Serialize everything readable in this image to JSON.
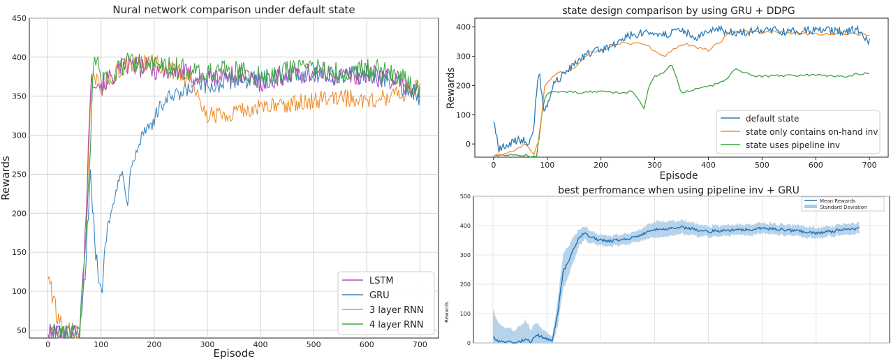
{
  "chart_data": [
    {
      "type": "line",
      "title": "Nural network comparison under default state",
      "xlabel": "Episode",
      "ylabel": "Rewards",
      "xlim": [
        -35,
        735
      ],
      "ylim": [
        40,
        450
      ],
      "x_ticks": [
        0,
        100,
        200,
        300,
        400,
        500,
        600,
        700
      ],
      "y_ticks": [
        50,
        100,
        150,
        200,
        250,
        300,
        350,
        400,
        450
      ],
      "grid": true,
      "legend_position": "bottom-right",
      "series": [
        {
          "name": "LSTM",
          "color": "#b64ab6",
          "x": [
            0,
            20,
            40,
            60,
            70,
            80,
            85,
            90,
            100,
            120,
            150,
            200,
            250,
            300,
            350,
            400,
            450,
            500,
            550,
            600,
            650,
            700
          ],
          "values": [
            45,
            45,
            45,
            45,
            170,
            360,
            375,
            372,
            365,
            375,
            390,
            385,
            380,
            372,
            378,
            368,
            378,
            380,
            375,
            378,
            372,
            355
          ]
        },
        {
          "name": "GRU",
          "color": "#3b86c0",
          "x": [
            0,
            20,
            40,
            60,
            70,
            80,
            85,
            90,
            95,
            100,
            105,
            110,
            120,
            140,
            150,
            160,
            180,
            200,
            220,
            250,
            280,
            300,
            350,
            400,
            450,
            500,
            550,
            600,
            650,
            700
          ],
          "values": [
            50,
            48,
            45,
            45,
            120,
            260,
            200,
            150,
            115,
            95,
            130,
            175,
            215,
            250,
            220,
            275,
            305,
            320,
            345,
            350,
            365,
            360,
            372,
            370,
            378,
            380,
            375,
            378,
            372,
            345
          ]
        },
        {
          "name": "3 layer RNN",
          "color": "#f0902e",
          "x": [
            0,
            20,
            40,
            60,
            70,
            80,
            85,
            90,
            100,
            120,
            150,
            200,
            250,
            280,
            300,
            320,
            350,
            400,
            450,
            500,
            550,
            600,
            650,
            700
          ],
          "values": [
            120,
            60,
            48,
            45,
            150,
            340,
            370,
            375,
            360,
            375,
            390,
            392,
            380,
            360,
            325,
            328,
            330,
            335,
            340,
            345,
            348,
            345,
            350,
            360
          ]
        },
        {
          "name": "4 layer RNN",
          "color": "#41a643",
          "x": [
            0,
            20,
            40,
            60,
            70,
            80,
            85,
            90,
            100,
            120,
            150,
            200,
            250,
            300,
            350,
            400,
            450,
            500,
            550,
            600,
            650,
            700
          ],
          "values": [
            45,
            45,
            45,
            45,
            160,
            280,
            380,
            402,
            368,
            378,
            392,
            390,
            385,
            380,
            382,
            375,
            382,
            385,
            380,
            385,
            380,
            360
          ]
        }
      ]
    },
    {
      "type": "line",
      "title": "state design comparison by using GRU + DDPG",
      "xlabel": "Episode",
      "ylabel": "Rewards",
      "xlim": [
        -35,
        735
      ],
      "ylim": [
        -45,
        430
      ],
      "x_ticks": [
        0,
        100,
        200,
        300,
        400,
        500,
        600,
        700
      ],
      "y_ticks": [
        0,
        100,
        200,
        300,
        400
      ],
      "grid": false,
      "legend_position": "bottom-right",
      "series": [
        {
          "name": "default state",
          "color": "#2c7bb6",
          "x": [
            0,
            10,
            25,
            40,
            55,
            65,
            75,
            80,
            85,
            90,
            95,
            100,
            110,
            130,
            150,
            170,
            190,
            210,
            240,
            260,
            300,
            320,
            350,
            380,
            400,
            420,
            450,
            480,
            500,
            550,
            600,
            650,
            680,
            700
          ],
          "values": [
            80,
            -20,
            -5,
            10,
            15,
            5,
            60,
            180,
            260,
            160,
            110,
            130,
            200,
            240,
            270,
            300,
            320,
            325,
            360,
            375,
            380,
            375,
            385,
            365,
            380,
            390,
            380,
            385,
            390,
            385,
            390,
            385,
            390,
            350
          ]
        },
        {
          "name": "state only contains on-hand inv",
          "color": "#f28e2b",
          "x": [
            0,
            20,
            40,
            60,
            75,
            85,
            95,
            105,
            120,
            150,
            180,
            210,
            240,
            280,
            300,
            320,
            340,
            360,
            400,
            420,
            440,
            460,
            500,
            550,
            600,
            650,
            700
          ],
          "values": [
            -40,
            -35,
            -20,
            0,
            -40,
            20,
            200,
            220,
            240,
            255,
            315,
            325,
            345,
            340,
            320,
            300,
            330,
            340,
            320,
            345,
            380,
            385,
            385,
            380,
            375,
            380,
            370
          ]
        },
        {
          "name": "state uses pipeline inv",
          "color": "#3aa53a",
          "x": [
            0,
            20,
            40,
            60,
            80,
            88,
            95,
            105,
            130,
            160,
            190,
            210,
            230,
            260,
            280,
            290,
            300,
            320,
            330,
            340,
            350,
            370,
            400,
            430,
            450,
            480,
            500,
            550,
            600,
            650,
            700
          ],
          "values": [
            -40,
            -40,
            -35,
            -40,
            -45,
            80,
            160,
            175,
            180,
            175,
            180,
            180,
            175,
            178,
            125,
            200,
            230,
            250,
            275,
            230,
            175,
            185,
            195,
            215,
            255,
            235,
            230,
            235,
            235,
            230,
            245
          ]
        }
      ]
    },
    {
      "type": "area",
      "title": "best perfromance when using pipeline inv + GRU",
      "xlabel": "",
      "ylabel": "Rewards",
      "xlim": [
        0,
        700
      ],
      "ylim": [
        0,
        500
      ],
      "y_ticks": [
        0,
        100,
        200,
        300,
        400,
        500
      ],
      "grid": true,
      "legend_position": "top-right",
      "series": [
        {
          "name": "Mean Rewards",
          "color": "#1f6fb4",
          "x": [
            0,
            10,
            20,
            40,
            60,
            70,
            80,
            90,
            100,
            110,
            120,
            130,
            140,
            150,
            160,
            170,
            180,
            200,
            220,
            250,
            280,
            300,
            350,
            400,
            450,
            500,
            550,
            600,
            650,
            680
          ],
          "values": [
            20,
            5,
            5,
            0,
            10,
            5,
            30,
            20,
            15,
            5,
            100,
            240,
            280,
            320,
            360,
            375,
            360,
            350,
            348,
            355,
            372,
            385,
            395,
            380,
            385,
            390,
            385,
            375,
            385,
            390
          ]
        },
        {
          "name": "Standard Deviation",
          "color": "#a9cbe6",
          "x": [
            0,
            10,
            20,
            40,
            60,
            70,
            80,
            90,
            100,
            110,
            120,
            130,
            140,
            150,
            160,
            170,
            180,
            200,
            220,
            250,
            280,
            300,
            350,
            400,
            450,
            500,
            550,
            600,
            650,
            680
          ],
          "values": [
            20,
            5,
            5,
            0,
            10,
            5,
            30,
            20,
            15,
            5,
            100,
            240,
            280,
            320,
            360,
            375,
            360,
            350,
            348,
            355,
            372,
            385,
            395,
            380,
            385,
            390,
            385,
            375,
            385,
            390
          ],
          "spread": [
            90,
            60,
            45,
            40,
            60,
            40,
            40,
            25,
            20,
            10,
            40,
            55,
            50,
            40,
            25,
            20,
            20,
            15,
            15,
            15,
            18,
            25,
            20,
            15,
            15,
            15,
            15,
            15,
            15,
            15
          ]
        }
      ]
    }
  ]
}
